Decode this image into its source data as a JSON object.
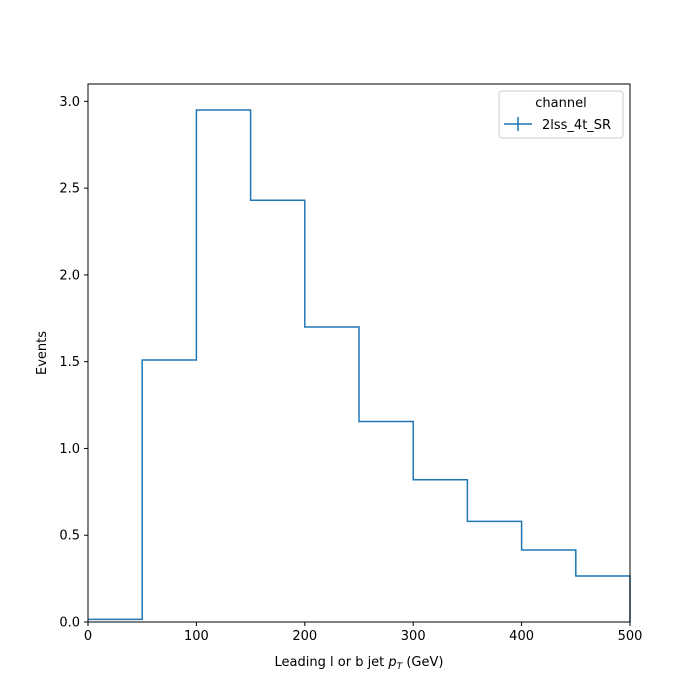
{
  "chart_data": {
    "type": "line",
    "drawstyle": "steps",
    "title": "",
    "xlabel": "Leading l or b jet ",
    "xlabel_math": "p",
    "xlabel_math_sub": "T",
    "xlabel_unit": " (GeV)",
    "ylabel": "Events",
    "xlim": [
      0,
      500
    ],
    "ylim": [
      0,
      3.1
    ],
    "xticks": [
      0,
      100,
      200,
      300,
      400,
      500
    ],
    "yticks": [
      0.0,
      0.5,
      1.0,
      1.5,
      2.0,
      2.5,
      3.0
    ],
    "xtick_labels": [
      "0",
      "100",
      "200",
      "300",
      "400",
      "500"
    ],
    "ytick_labels": [
      "0.0",
      "0.5",
      "1.0",
      "1.5",
      "2.0",
      "2.5",
      "3.0"
    ],
    "grid": false,
    "bin_edges": [
      0,
      50,
      100,
      150,
      200,
      250,
      300,
      350,
      400,
      450,
      500
    ],
    "series": [
      {
        "name": "2lss_4t_SR",
        "values": [
          0.015,
          1.51,
          2.95,
          2.43,
          1.7,
          1.155,
          0.82,
          0.58,
          0.415,
          0.265
        ],
        "color": "#1f77b4"
      }
    ],
    "legend": {
      "title": "channel",
      "placement": "upper-right"
    }
  }
}
